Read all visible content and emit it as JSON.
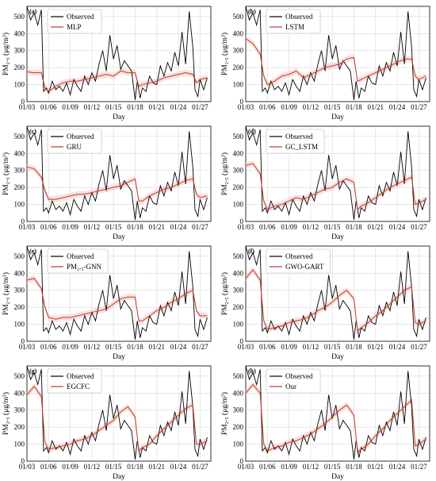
{
  "figure": {
    "common": {
      "xlabel": "Day",
      "ylabel": "PM₂.₅ (μg/m³)",
      "xticks": [
        "01/03",
        "01/06",
        "01/09",
        "01/12",
        "01/15",
        "01/18",
        "01/21",
        "01/24",
        "01/27"
      ],
      "yticks": [
        0,
        100,
        200,
        300,
        400,
        500
      ],
      "observed_label": "Observed",
      "colors": {
        "observed": "#000000",
        "model": "#c0392b",
        "band": "#f6c6c0"
      }
    }
  },
  "chart_data": [
    {
      "panel": "(a)",
      "type": "line",
      "xlabel": "Day",
      "ylabel": "PM2.5 (μg/m³)",
      "ylim": [
        0,
        560
      ],
      "grid": true,
      "legend": "top-left",
      "x_range": [
        "01/03",
        "01/28"
      ],
      "series": [
        {
          "name": "Observed",
          "t": [
            0,
            0.5,
            1,
            1.5,
            2,
            2.3,
            2.7,
            3,
            3.5,
            4,
            4.5,
            5,
            5.5,
            6,
            6.5,
            7,
            7.5,
            8,
            8.5,
            9,
            9.5,
            10,
            10.5,
            11,
            11.5,
            12,
            12.5,
            13,
            13.5,
            14,
            14.5,
            15,
            15.3,
            15.7,
            16,
            16.5,
            17,
            17.5,
            18,
            18.5,
            19,
            19.5,
            20,
            20.5,
            21,
            21.5,
            22,
            22.5,
            23,
            23.3,
            23.7,
            24,
            24.5,
            25
          ],
          "values": [
            560,
            480,
            520,
            450,
            540,
            60,
            80,
            50,
            120,
            70,
            90,
            60,
            110,
            40,
            130,
            90,
            60,
            150,
            100,
            170,
            120,
            220,
            300,
            180,
            390,
            250,
            330,
            190,
            240,
            210,
            180,
            10,
            120,
            20,
            80,
            60,
            150,
            110,
            100,
            210,
            150,
            230,
            180,
            290,
            210,
            410,
            220,
            530,
            320,
            70,
            30,
            130,
            70,
            140
          ]
        },
        {
          "name": "MLP",
          "t": [
            0,
            1,
            2,
            2.5,
            3,
            4,
            5,
            6,
            7,
            8,
            9,
            10,
            11,
            12,
            13,
            14,
            15,
            15.5,
            16,
            17,
            18,
            19,
            20,
            21,
            22,
            23,
            23.5,
            24,
            25
          ],
          "values": [
            175,
            170,
            170,
            80,
            60,
            90,
            110,
            120,
            120,
            130,
            140,
            150,
            160,
            150,
            180,
            170,
            170,
            90,
            100,
            110,
            120,
            140,
            150,
            160,
            170,
            160,
            110,
            130,
            140
          ]
        }
      ]
    },
    {
      "panel": "(b)",
      "type": "line",
      "xlabel": "Day",
      "ylabel": "PM2.5 (μg/m³)",
      "ylim": [
        0,
        560
      ],
      "grid": true,
      "legend": "top-left",
      "series": [
        {
          "name": "Observed",
          "ref": "observed"
        },
        {
          "name": "LSTM",
          "t": [
            0,
            1,
            2,
            2.5,
            3,
            4,
            5,
            6,
            7,
            8,
            9,
            10,
            11,
            12,
            13,
            14,
            15,
            15.5,
            16,
            17,
            18,
            19,
            20,
            21,
            22,
            23,
            23.5,
            24,
            25
          ],
          "values": [
            370,
            340,
            280,
            150,
            100,
            120,
            150,
            160,
            180,
            140,
            160,
            180,
            200,
            210,
            220,
            250,
            260,
            120,
            130,
            150,
            170,
            190,
            210,
            230,
            250,
            250,
            150,
            130,
            150
          ]
        }
      ]
    },
    {
      "panel": "(c)",
      "type": "line",
      "xlabel": "Day",
      "ylabel": "PM2.5 (μg/m³)",
      "ylim": [
        0,
        560
      ],
      "grid": true,
      "legend": "top-left",
      "series": [
        {
          "name": "Observed",
          "ref": "observed"
        },
        {
          "name": "GRU",
          "t": [
            0,
            1,
            2,
            2.5,
            3,
            4,
            5,
            6,
            7,
            8,
            9,
            10,
            11,
            12,
            13,
            14,
            15,
            15.5,
            16,
            17,
            18,
            19,
            20,
            21,
            22,
            23,
            23.5,
            24,
            25
          ],
          "values": [
            320,
            310,
            260,
            180,
            130,
            130,
            140,
            150,
            160,
            160,
            170,
            180,
            190,
            200,
            210,
            230,
            250,
            120,
            120,
            150,
            170,
            190,
            200,
            220,
            240,
            250,
            160,
            140,
            150
          ]
        }
      ]
    },
    {
      "panel": "(d)",
      "type": "line",
      "xlabel": "Day",
      "ylabel": "PM2.5 (μg/m³)",
      "ylim": [
        0,
        560
      ],
      "grid": true,
      "legend": "top-left",
      "series": [
        {
          "name": "Observed",
          "ref": "observed"
        },
        {
          "name": "GC_LSTM",
          "t": [
            0,
            1,
            2,
            2.5,
            3,
            4,
            5,
            6,
            7,
            8,
            9,
            10,
            11,
            12,
            13,
            14,
            15,
            15.5,
            16,
            17,
            18,
            19,
            20,
            21,
            22,
            23,
            23.5,
            24,
            25
          ],
          "values": [
            330,
            340,
            280,
            120,
            70,
            90,
            100,
            120,
            140,
            130,
            150,
            170,
            190,
            200,
            230,
            250,
            230,
            70,
            90,
            110,
            140,
            170,
            200,
            220,
            240,
            260,
            100,
            110,
            130
          ]
        }
      ]
    },
    {
      "panel": "(e)",
      "type": "line",
      "xlabel": "Day",
      "ylabel": "PM2.5 (μg/m³)",
      "ylim": [
        0,
        560
      ],
      "grid": true,
      "legend": "top-left",
      "series": [
        {
          "name": "Observed",
          "ref": "observed"
        },
        {
          "name": "PM₂.₅-GNN",
          "t": [
            0,
            1,
            2,
            2.5,
            3,
            4,
            5,
            6,
            7,
            8,
            9,
            10,
            11,
            12,
            13,
            14,
            15,
            15.5,
            16,
            17,
            18,
            19,
            20,
            21,
            22,
            23,
            23.5,
            24,
            25
          ],
          "values": [
            360,
            370,
            310,
            200,
            140,
            130,
            140,
            140,
            150,
            160,
            170,
            180,
            190,
            220,
            250,
            260,
            260,
            120,
            120,
            150,
            180,
            200,
            230,
            250,
            280,
            300,
            180,
            150,
            150
          ]
        }
      ]
    },
    {
      "panel": "(f)",
      "type": "line",
      "xlabel": "Day",
      "ylabel": "PM2.5 (μg/m³)",
      "ylim": [
        0,
        560
      ],
      "grid": true,
      "legend": "top-left",
      "series": [
        {
          "name": "Observed",
          "ref": "observed"
        },
        {
          "name": "GWO-GART",
          "t": [
            0,
            1,
            2,
            2.5,
            3,
            4,
            5,
            6,
            7,
            8,
            9,
            10,
            11,
            12,
            13,
            14,
            15,
            15.5,
            16,
            17,
            18,
            19,
            20,
            21,
            22,
            23,
            23.5,
            24,
            25
          ],
          "values": [
            370,
            420,
            360,
            120,
            70,
            80,
            90,
            110,
            120,
            130,
            150,
            180,
            200,
            230,
            270,
            300,
            250,
            60,
            80,
            110,
            150,
            180,
            220,
            260,
            300,
            320,
            110,
            100,
            120
          ]
        }
      ]
    },
    {
      "panel": "(g)",
      "type": "line",
      "xlabel": "Day",
      "ylabel": "PM2.5 (μg/m³)",
      "ylim": [
        0,
        560
      ],
      "grid": true,
      "legend": "top-left",
      "series": [
        {
          "name": "Observed",
          "ref": "observed"
        },
        {
          "name": "EGCFC",
          "t": [
            0,
            1,
            2,
            2.5,
            3,
            4,
            5,
            6,
            7,
            8,
            9,
            10,
            11,
            12,
            13,
            14,
            15,
            15.5,
            16,
            17,
            18,
            19,
            20,
            21,
            22,
            23,
            23.5,
            24,
            25
          ],
          "values": [
            390,
            440,
            380,
            110,
            70,
            80,
            90,
            100,
            120,
            130,
            150,
            180,
            210,
            240,
            290,
            320,
            260,
            60,
            80,
            100,
            150,
            190,
            230,
            270,
            310,
            330,
            100,
            100,
            120
          ]
        }
      ]
    },
    {
      "panel": "(h)",
      "type": "line",
      "xlabel": "Day",
      "ylabel": "PM2.5 (μg/m³)",
      "ylim": [
        0,
        560
      ],
      "grid": true,
      "legend": "top-left",
      "series": [
        {
          "name": "Observed",
          "ref": "observed"
        },
        {
          "name": "Our",
          "t": [
            0,
            1,
            2,
            2.5,
            3,
            4,
            5,
            6,
            7,
            8,
            9,
            10,
            11,
            12,
            13,
            14,
            15,
            15.5,
            16,
            17,
            18,
            19,
            20,
            21,
            22,
            23,
            23.5,
            24,
            25
          ],
          "values": [
            400,
            450,
            400,
            100,
            60,
            80,
            90,
            110,
            120,
            140,
            160,
            190,
            220,
            260,
            300,
            330,
            270,
            50,
            70,
            100,
            150,
            190,
            240,
            280,
            320,
            360,
            90,
            100,
            130
          ]
        }
      ]
    }
  ]
}
